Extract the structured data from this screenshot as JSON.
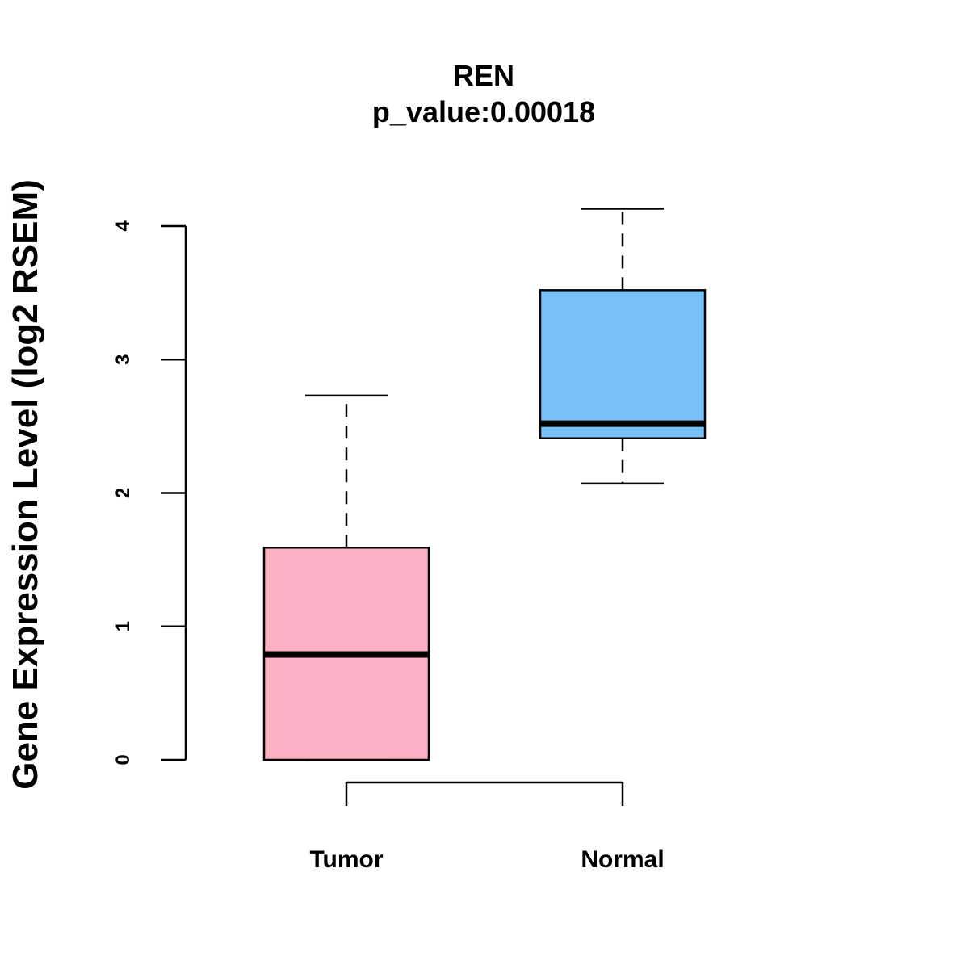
{
  "chart_data": {
    "type": "boxplot",
    "title": "REN",
    "subtitle": "p_value:0.00018",
    "xlabel": "",
    "ylabel": "Gene Expression Level (log2 RSEM)",
    "ylim": [
      0,
      4
    ],
    "yticks": [
      0,
      1,
      2,
      3,
      4
    ],
    "categories": [
      "Tumor",
      "Normal"
    ],
    "boxes": [
      {
        "name": "Tumor",
        "min": 0,
        "q1": 0,
        "median": 0.79,
        "q3": 1.59,
        "max": 2.73,
        "color": "#FBB0C3"
      },
      {
        "name": "Normal",
        "min": 2.07,
        "q1": 2.41,
        "median": 2.52,
        "q3": 3.52,
        "max": 4.13,
        "color": "#77C1F8"
      }
    ],
    "bracket_color": "#000000"
  }
}
